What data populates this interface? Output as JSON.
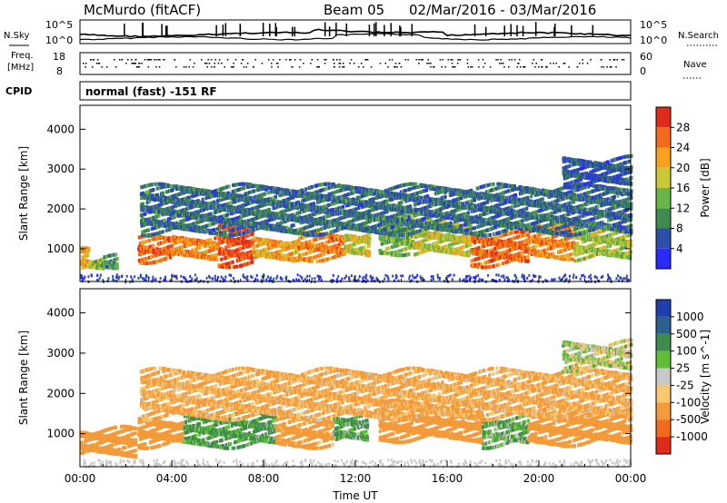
{
  "header": {
    "station": "McMurdo (fitACF)",
    "beam": "Beam 05",
    "date_range": "02/Mar/2016 - 03/Mar/2016"
  },
  "top_panels": {
    "nsky_label": "N.Sky",
    "nsearch_label": "N.Search",
    "freq_label_1": "Freq.",
    "freq_label_2": "[MHz]",
    "nave_label": "Nave",
    "cpid_label": "CPID",
    "cpid_value": "normal (fast) -151 RF",
    "noise_ticks_left": [
      "10^5",
      "10^0"
    ],
    "noise_ticks_right": [
      "10^5",
      "10^0"
    ],
    "freq_ticks": [
      "18",
      "8"
    ],
    "nave_ticks": [
      "60",
      "0"
    ]
  },
  "chart_data": [
    {
      "type": "heatmap",
      "name": "power",
      "title": "",
      "xlabel": "",
      "ylabel": "Slant Range [km]",
      "xlim": [
        0,
        24
      ],
      "ylim": [
        180,
        4600
      ],
      "yticks": [
        1000,
        2000,
        3000,
        4000
      ],
      "colorbar": {
        "label": "Power [dB]",
        "ticks": [
          "4",
          "8",
          "12",
          "16",
          "20",
          "24",
          "28"
        ],
        "colors": [
          "#2a2aff",
          "#2e4fa8",
          "#3f8a4e",
          "#6ab54a",
          "#c9c935",
          "#f7a21c",
          "#f36a1c",
          "#e02a1a"
        ]
      },
      "bands": [
        {
          "t": [
            0.0,
            0.35
          ],
          "lo": 560,
          "hi": 1150,
          "v": 22
        },
        {
          "t": [
            0.35,
            1.0
          ],
          "lo": 560,
          "hi": 780,
          "v": 16
        },
        {
          "t": [
            1.0,
            1.6
          ],
          "lo": 600,
          "hi": 820,
          "v": 10
        },
        {
          "t": [
            2.5,
            4.0
          ],
          "lo": 800,
          "hi": 1300,
          "v": 26
        },
        {
          "t": [
            4.0,
            6.0
          ],
          "lo": 850,
          "hi": 1350,
          "v": 24
        },
        {
          "t": [
            6.0,
            7.5
          ],
          "lo": 700,
          "hi": 1650,
          "v": 28
        },
        {
          "t": [
            7.5,
            9.5
          ],
          "lo": 800,
          "hi": 1300,
          "v": 22
        },
        {
          "t": [
            9.5,
            11.5
          ],
          "lo": 850,
          "hi": 1400,
          "v": 24
        },
        {
          "t": [
            11.5,
            12.6
          ],
          "lo": 900,
          "hi": 1450,
          "v": 18
        },
        {
          "t": [
            13.0,
            14.5
          ],
          "lo": 1000,
          "hi": 1800,
          "v": 14
        },
        {
          "t": [
            14.5,
            17.0
          ],
          "lo": 950,
          "hi": 1700,
          "v": 18
        },
        {
          "t": [
            17.0,
            19.5
          ],
          "lo": 700,
          "hi": 1400,
          "v": 26
        },
        {
          "t": [
            19.5,
            21.5
          ],
          "lo": 900,
          "hi": 1700,
          "v": 24
        },
        {
          "t": [
            21.5,
            24.0
          ],
          "lo": 850,
          "hi": 1600,
          "v": 16
        },
        {
          "t": [
            2.6,
            24.0
          ],
          "lo": 1500,
          "hi": 2600,
          "v": 8
        },
        {
          "t": [
            21.0,
            24.0
          ],
          "lo": 2700,
          "hi": 3300,
          "v": 6
        }
      ]
    },
    {
      "type": "heatmap",
      "name": "velocity",
      "title": "",
      "xlabel": "Time UT",
      "ylabel": "Slant Range [km]",
      "xlim": [
        0,
        24
      ],
      "ylim": [
        180,
        4600
      ],
      "xticks": [
        "00:00",
        "04:00",
        "08:00",
        "12:00",
        "16:00",
        "20:00",
        "00:00"
      ],
      "yticks": [
        1000,
        2000,
        3000,
        4000
      ],
      "colorbar": {
        "label": "Velocity [m s^-1]",
        "ticks": [
          "1000",
          "500",
          "100",
          "25",
          "-25",
          "-100",
          "-500",
          "-1000"
        ],
        "colors": [
          "#1f3fb0",
          "#2e5f8f",
          "#3f8a4e",
          "#5fbd3a",
          "#c8c8c8",
          "#f7c870",
          "#f39a3a",
          "#f36a1c",
          "#e02a1a"
        ]
      },
      "bands": [
        {
          "t": [
            0.0,
            2.4
          ],
          "lo": 560,
          "hi": 1150,
          "v": -300
        },
        {
          "t": [
            2.5,
            4.5
          ],
          "lo": 800,
          "hi": 1400,
          "v": -250
        },
        {
          "t": [
            4.5,
            8.5
          ],
          "lo": 800,
          "hi": 1600,
          "v": 120
        },
        {
          "t": [
            8.5,
            11.0
          ],
          "lo": 800,
          "hi": 1400,
          "v": -200
        },
        {
          "t": [
            11.0,
            12.5
          ],
          "lo": 900,
          "hi": 1500,
          "v": 100
        },
        {
          "t": [
            13.0,
            17.5
          ],
          "lo": 950,
          "hi": 1800,
          "v": -300
        },
        {
          "t": [
            17.5,
            19.5
          ],
          "lo": 800,
          "hi": 1500,
          "v": 80
        },
        {
          "t": [
            19.5,
            24.0
          ],
          "lo": 850,
          "hi": 1700,
          "v": -350
        },
        {
          "t": [
            2.6,
            24.0
          ],
          "lo": 1500,
          "hi": 2600,
          "v": -120
        },
        {
          "t": [
            21.0,
            24.0
          ],
          "lo": 2700,
          "hi": 3300,
          "v": 0
        }
      ]
    }
  ]
}
